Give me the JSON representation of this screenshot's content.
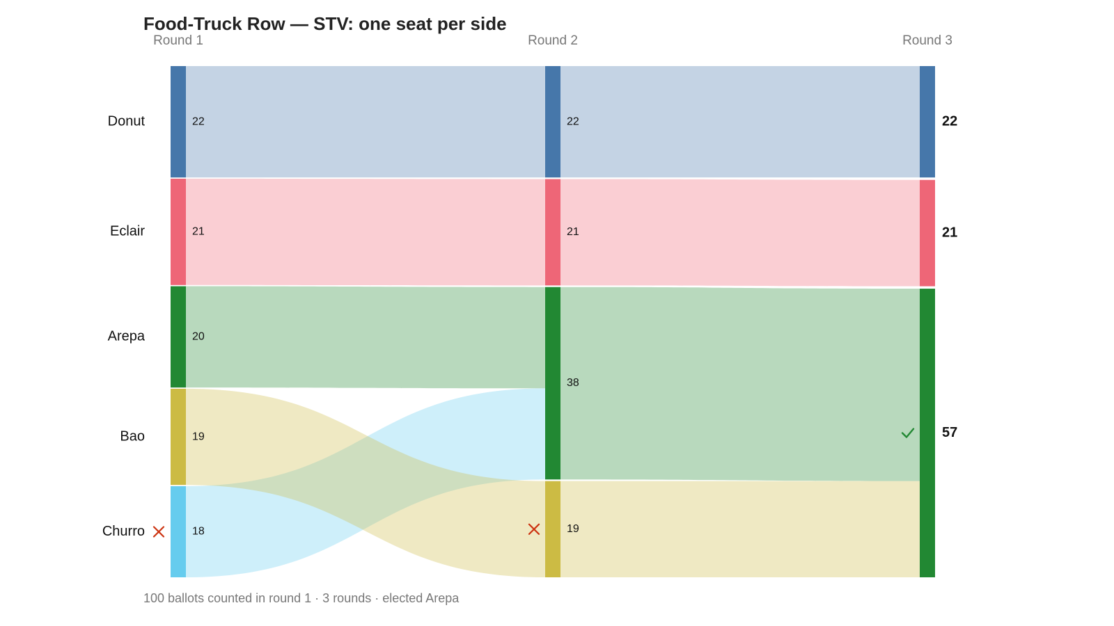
{
  "chart_data": {
    "type": "sankey",
    "title": "Food-Truck Row — STV: one seat per side",
    "footer": "100 ballots counted in round 1 · 3 rounds · elected Arepa",
    "rounds": [
      "Round 1",
      "Round 2",
      "Round 3"
    ],
    "candidates": [
      {
        "name": "Donut",
        "color": "#4677AA"
      },
      {
        "name": "Eclair",
        "color": "#EE6677"
      },
      {
        "name": "Arepa",
        "color": "#228833"
      },
      {
        "name": "Bao",
        "color": "#CCBB44"
      },
      {
        "name": "Churro",
        "color": "#66CCEE"
      }
    ],
    "nodes": [
      {
        "id": "r1-donut",
        "round": 0,
        "candidate": "Donut",
        "value": 22
      },
      {
        "id": "r1-eclair",
        "round": 0,
        "candidate": "Eclair",
        "value": 21
      },
      {
        "id": "r1-arepa",
        "round": 0,
        "candidate": "Arepa",
        "value": 20
      },
      {
        "id": "r1-bao",
        "round": 0,
        "candidate": "Bao",
        "value": 19
      },
      {
        "id": "r1-churro",
        "round": 0,
        "candidate": "Churro",
        "value": 18,
        "eliminated": true
      },
      {
        "id": "r2-donut",
        "round": 1,
        "candidate": "Donut",
        "value": 22
      },
      {
        "id": "r2-eclair",
        "round": 1,
        "candidate": "Eclair",
        "value": 21
      },
      {
        "id": "r2-arepa",
        "round": 1,
        "candidate": "Arepa",
        "value": 38
      },
      {
        "id": "r2-bao",
        "round": 1,
        "candidate": "Bao",
        "value": 19,
        "eliminated": true
      },
      {
        "id": "r3-donut",
        "round": 2,
        "candidate": "Donut",
        "value": 22
      },
      {
        "id": "r3-eclair",
        "round": 2,
        "candidate": "Eclair",
        "value": 21
      },
      {
        "id": "r3-arepa",
        "round": 2,
        "candidate": "Arepa",
        "value": 57,
        "elected": true
      }
    ],
    "flows": [
      {
        "from": "r1-donut",
        "to": "r2-donut",
        "value": 22,
        "color": "Donut"
      },
      {
        "from": "r1-eclair",
        "to": "r2-eclair",
        "value": 21,
        "color": "Eclair"
      },
      {
        "from": "r1-arepa",
        "to": "r2-arepa",
        "value": 20,
        "color": "Arepa"
      },
      {
        "from": "r1-churro",
        "to": "r2-arepa",
        "value": 18,
        "color": "Churro"
      },
      {
        "from": "r1-bao",
        "to": "r2-bao",
        "value": 19,
        "color": "Bao"
      },
      {
        "from": "r2-donut",
        "to": "r3-donut",
        "value": 22,
        "color": "Donut"
      },
      {
        "from": "r2-eclair",
        "to": "r3-eclair",
        "value": 21,
        "color": "Eclair"
      },
      {
        "from": "r2-arepa",
        "to": "r3-arepa",
        "value": 38,
        "color": "Arepa"
      },
      {
        "from": "r2-bao",
        "to": "r3-arepa",
        "value": 19,
        "color": "Bao"
      }
    ],
    "eliminated_icon": "cross-icon",
    "elected_icon": "check-icon",
    "eliminated_color": "#CC3311",
    "elected_color": "#228833"
  }
}
